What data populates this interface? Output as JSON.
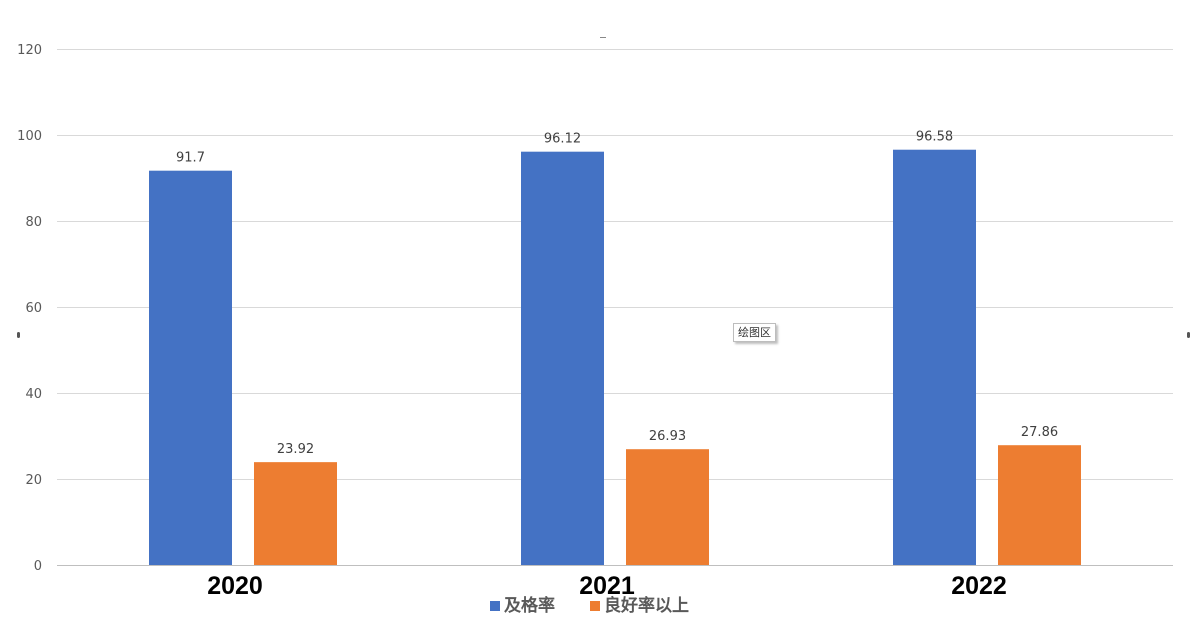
{
  "chart_data": {
    "type": "bar",
    "categories": [
      "2020",
      "2021",
      "2022"
    ],
    "series": [
      {
        "name": "及格率",
        "values": [
          91.7,
          96.12,
          96.58
        ],
        "labels": [
          "91.7",
          "96.12",
          "96.58"
        ],
        "color": "#4472C4"
      },
      {
        "name": "良好率以上",
        "values": [
          23.92,
          26.93,
          27.86
        ],
        "labels": [
          "23.92",
          "26.93",
          "27.86"
        ],
        "color": "#ED7D31"
      }
    ],
    "ylim": [
      0,
      120
    ],
    "yticks": [
      0,
      20,
      40,
      60,
      80,
      100,
      120
    ],
    "grid": true,
    "legend_position": "bottom"
  },
  "tooltip": {
    "text": "绘图区"
  }
}
